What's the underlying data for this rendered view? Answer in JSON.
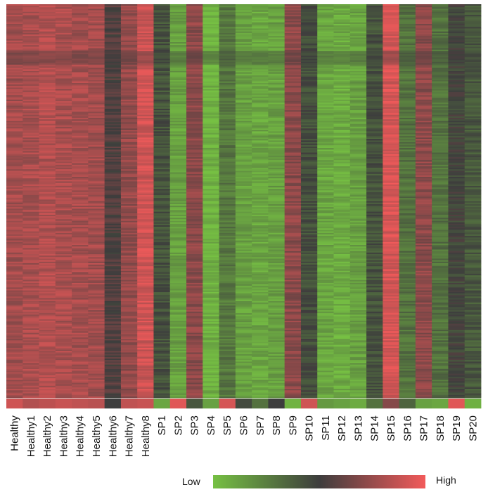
{
  "chart_data": {
    "type": "heatmap",
    "title": "",
    "xlabel": "",
    "ylabel": "",
    "columns": [
      "Healthy",
      "Healthy1",
      "Healthy2",
      "Healthy3",
      "Healthy4",
      "Healthy5",
      "Healthy6",
      "Healthy7",
      "Healthy8",
      "SP1",
      "SP2",
      "SP3",
      "SP4",
      "SP5",
      "SP6",
      "SP7",
      "SP8",
      "SP9",
      "SP10",
      "SP11",
      "SP12",
      "SP13",
      "SP14",
      "SP15",
      "SP16",
      "SP17",
      "SP18",
      "SP19",
      "SP20"
    ],
    "row_count": 260,
    "column_levels": [
      0.78,
      0.8,
      0.82,
      0.8,
      0.79,
      0.78,
      0.55,
      0.74,
      0.9,
      0.42,
      0.12,
      0.72,
      0.06,
      0.28,
      0.12,
      0.1,
      0.12,
      0.72,
      0.44,
      0.1,
      0.08,
      0.12,
      0.42,
      0.92,
      0.3,
      0.72,
      0.3,
      0.48,
      0.4
    ],
    "bottom_row_levels": [
      0.9,
      0.82,
      0.85,
      0.88,
      0.86,
      0.84,
      0.5,
      0.86,
      0.88,
      0.1,
      0.95,
      0.4,
      0.12,
      0.92,
      0.45,
      0.3,
      0.5,
      0.05,
      0.9,
      0.15,
      0.12,
      0.08,
      0.3,
      0.7,
      0.35,
      0.12,
      0.1,
      0.95,
      0.06
    ],
    "legend": {
      "low_label": "Low",
      "high_label": "High",
      "low_color": "#76c043",
      "mid_color": "#3d3d3d",
      "high_color": "#f25a5a",
      "placement": "bottom"
    }
  }
}
